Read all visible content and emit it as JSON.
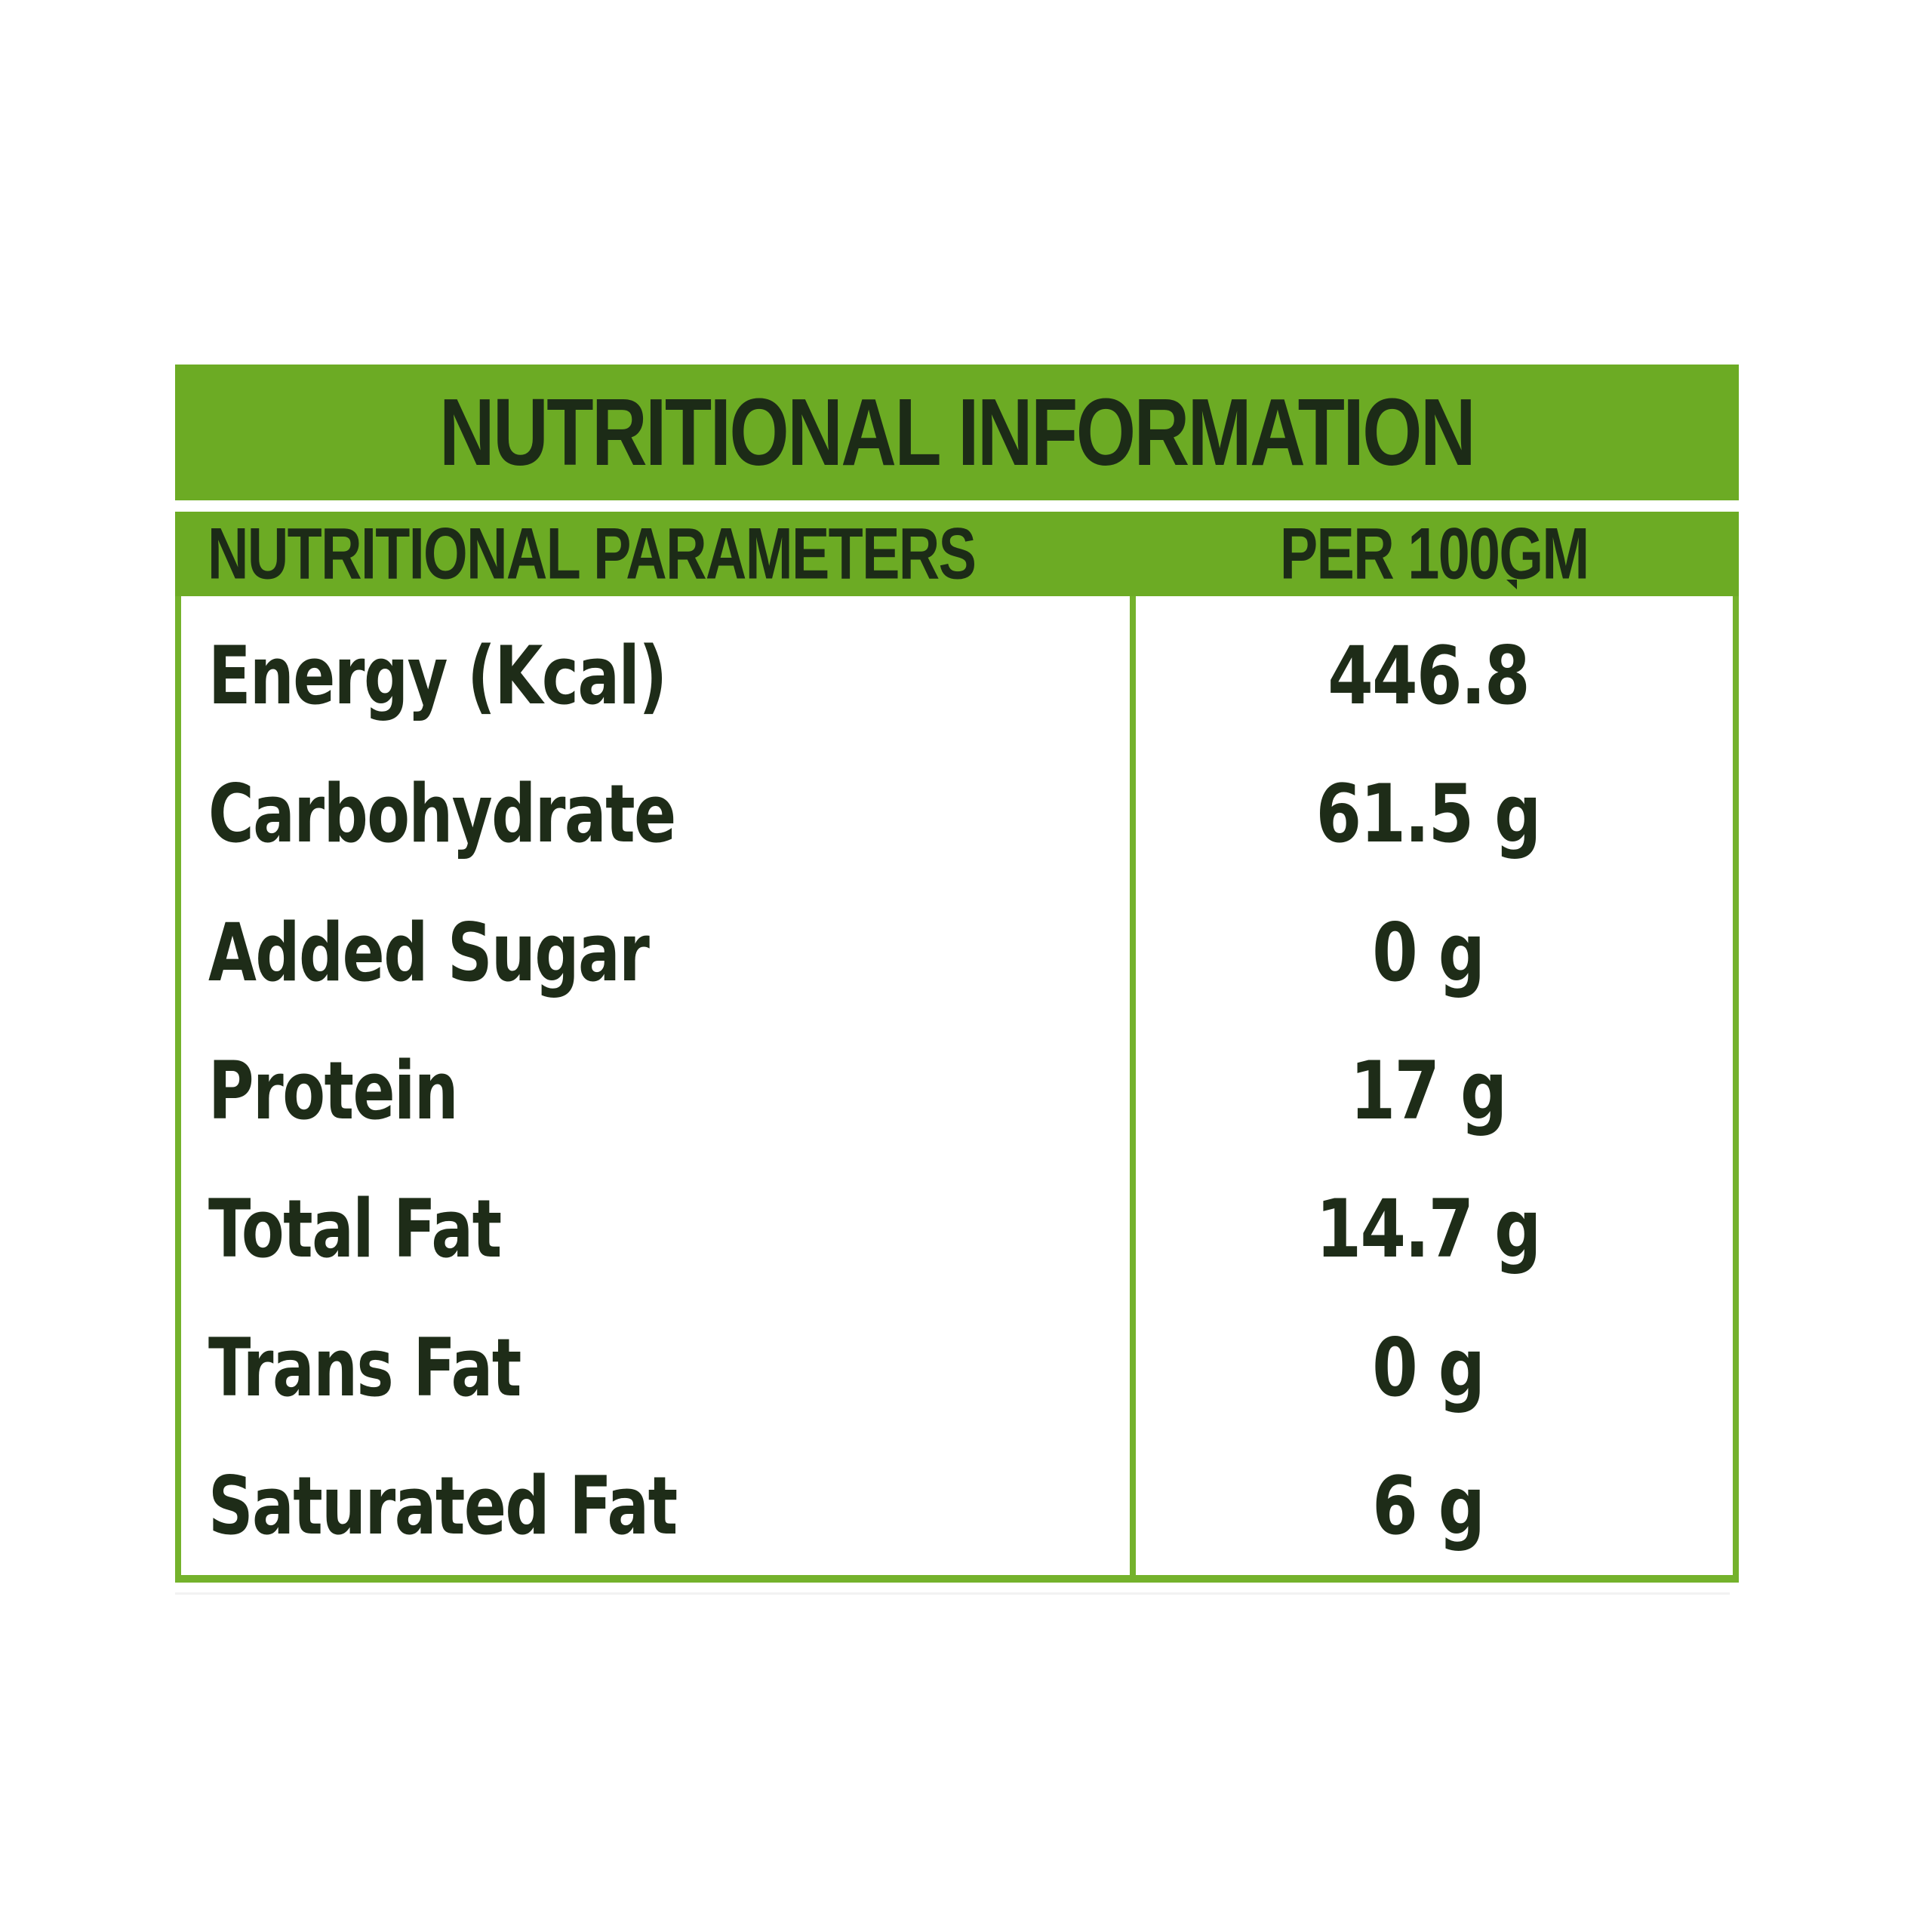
{
  "title": "NUTRITIONAL INFORMATION",
  "table": {
    "col1_header": "NUTRITIONAL PARAMETERS",
    "col2_header": "PER 100GM",
    "rows": [
      {
        "label": "Energy (Kcal)",
        "value": "446.8"
      },
      {
        "label": "Carbohydrate",
        "value": "61.5 g"
      },
      {
        "label": "Added Sugar",
        "value": "0 g"
      },
      {
        "label": "Protein",
        "value": "17 g"
      },
      {
        "label": "Total Fat",
        "value": "14.7 g"
      },
      {
        "label": "Trans Fat",
        "value": "0 g"
      },
      {
        "label": "Saturated Fat",
        "value": "6 g"
      }
    ]
  },
  "colors": {
    "bar_green": "#6cab24",
    "border_green": "#74b22c",
    "text_dark": "#1c2b17",
    "background": "#ffffff"
  }
}
